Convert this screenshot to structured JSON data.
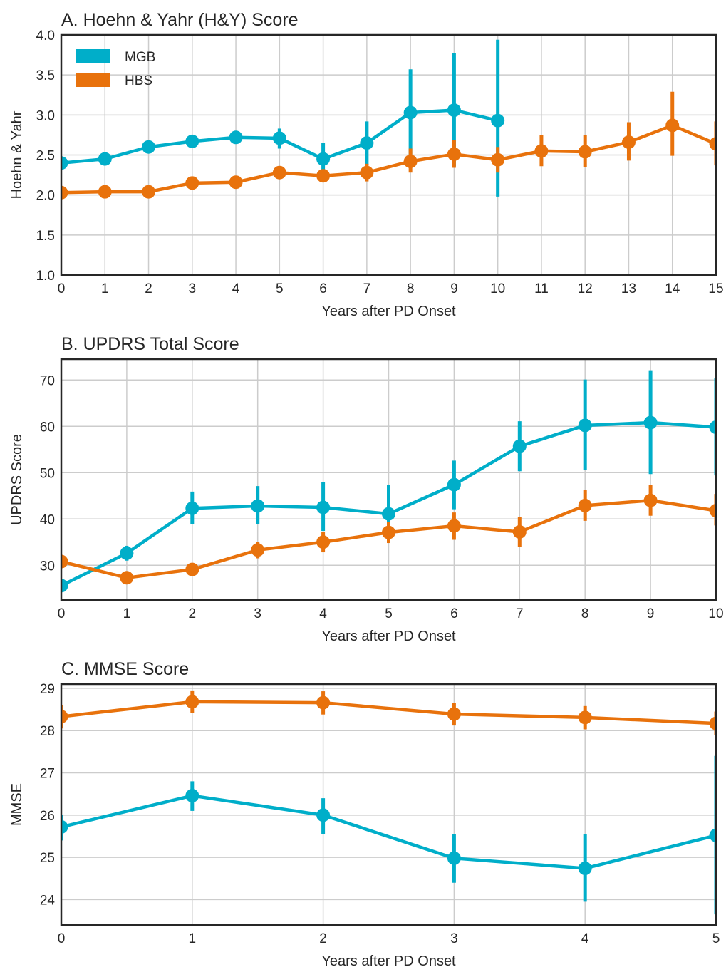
{
  "colors": {
    "MGB": "#00AEC9",
    "HBS": "#E8720C"
  },
  "chart_data": [
    {
      "type": "line",
      "title": "A. Hoehn & Yahr (H&Y) Score",
      "xlabel": "Years after PD Onset",
      "ylabel": "Hoehn & Yahr",
      "xlim": [
        0,
        15
      ],
      "ylim": [
        1.0,
        4.0
      ],
      "xticks": [
        0,
        1,
        2,
        3,
        4,
        5,
        6,
        7,
        8,
        9,
        10,
        11,
        12,
        13,
        14,
        15
      ],
      "yticks": [
        1.0,
        1.5,
        2.0,
        2.5,
        3.0,
        3.5,
        4.0
      ],
      "ytick_labels": [
        "1.0",
        "1.5",
        "2.0",
        "2.5",
        "3.0",
        "3.5",
        "4.0"
      ],
      "grid": true,
      "legend": {
        "location": "top-left",
        "entries": [
          "MGB",
          "HBS"
        ]
      },
      "series": [
        {
          "name": "MGB",
          "x": [
            0,
            1,
            2,
            3,
            4,
            5,
            6,
            7,
            8,
            9,
            10
          ],
          "y": [
            2.4,
            2.45,
            2.6,
            2.67,
            2.72,
            2.71,
            2.45,
            2.65,
            3.03,
            3.06,
            2.93
          ],
          "err_low": [
            2.36,
            2.41,
            2.55,
            2.62,
            2.67,
            2.58,
            2.28,
            2.38,
            2.5,
            2.36,
            1.98
          ],
          "err_high": [
            2.44,
            2.5,
            2.65,
            2.72,
            2.77,
            2.83,
            2.65,
            2.92,
            3.57,
            3.77,
            3.94
          ]
        },
        {
          "name": "HBS",
          "x": [
            0,
            1,
            2,
            3,
            4,
            5,
            6,
            7,
            8,
            9,
            10,
            11,
            12,
            13,
            14,
            15
          ],
          "y": [
            2.03,
            2.04,
            2.04,
            2.15,
            2.16,
            2.28,
            2.24,
            2.28,
            2.42,
            2.51,
            2.44,
            2.55,
            2.54,
            2.66,
            2.87,
            2.64
          ],
          "err_low": [
            2.0,
            2.01,
            2.01,
            2.11,
            2.12,
            2.23,
            2.18,
            2.17,
            2.28,
            2.34,
            2.28,
            2.36,
            2.35,
            2.43,
            2.49,
            2.37
          ],
          "err_high": [
            2.06,
            2.07,
            2.07,
            2.19,
            2.2,
            2.33,
            2.3,
            2.39,
            2.58,
            2.69,
            2.6,
            2.75,
            2.75,
            2.91,
            3.29,
            2.92
          ]
        }
      ]
    },
    {
      "type": "line",
      "title": "B. UPDRS Total Score",
      "xlabel": "Years after PD Onset",
      "ylabel": "UPDRS Score",
      "xlim": [
        0,
        10
      ],
      "ylim": [
        22.5,
        74.5
      ],
      "xticks": [
        0,
        1,
        2,
        3,
        4,
        5,
        6,
        7,
        8,
        9,
        10
      ],
      "yticks": [
        30,
        40,
        50,
        60,
        70
      ],
      "ytick_labels": [
        "30",
        "40",
        "50",
        "60",
        "70"
      ],
      "grid": true,
      "series": [
        {
          "name": "MGB",
          "x": [
            0,
            1,
            2,
            3,
            4,
            5,
            6,
            7,
            8,
            9,
            10
          ],
          "y": [
            25.6,
            32.6,
            42.3,
            42.8,
            42.5,
            41.1,
            47.4,
            55.7,
            60.2,
            60.8,
            59.8
          ],
          "err_low": [
            24.5,
            31.0,
            38.9,
            38.9,
            37.4,
            35.6,
            42.1,
            50.3,
            50.6,
            49.7,
            49.4
          ],
          "err_high": [
            26.7,
            34.2,
            45.9,
            47.1,
            47.9,
            47.3,
            52.6,
            61.1,
            70.1,
            72.1,
            70.4
          ]
        },
        {
          "name": "HBS",
          "x": [
            0,
            1,
            2,
            3,
            4,
            5,
            6,
            7,
            8,
            9,
            10
          ],
          "y": [
            30.8,
            27.3,
            29.1,
            33.3,
            35.0,
            37.1,
            38.5,
            37.2,
            42.9,
            44.0,
            41.8
          ],
          "err_low": [
            29.6,
            26.1,
            27.9,
            31.5,
            32.8,
            34.8,
            35.5,
            34.0,
            39.6,
            40.7,
            38.6
          ],
          "err_high": [
            32.0,
            28.5,
            30.3,
            35.1,
            37.2,
            39.4,
            41.4,
            40.4,
            46.2,
            47.3,
            45.4
          ]
        }
      ]
    },
    {
      "type": "line",
      "title": "C. MMSE Score",
      "xlabel": "Years after PD Onset",
      "ylabel": "MMSE",
      "xlim": [
        0,
        5
      ],
      "ylim": [
        23.4,
        29.1
      ],
      "xticks": [
        0,
        1,
        2,
        3,
        4,
        5
      ],
      "yticks": [
        24,
        25,
        26,
        27,
        28,
        29
      ],
      "ytick_labels": [
        "24",
        "25",
        "26",
        "27",
        "28",
        "29"
      ],
      "grid": true,
      "series": [
        {
          "name": "MGB",
          "x": [
            0,
            1,
            2,
            3,
            4,
            5
          ],
          "y": [
            25.72,
            26.46,
            26.0,
            24.98,
            24.74,
            25.52
          ],
          "err_low": [
            25.4,
            26.1,
            25.55,
            24.4,
            23.95,
            23.65
          ],
          "err_high": [
            26.0,
            26.8,
            26.4,
            25.55,
            25.55,
            27.4
          ]
        },
        {
          "name": "HBS",
          "x": [
            0,
            1,
            2,
            3,
            4,
            5
          ],
          "y": [
            28.33,
            28.68,
            28.66,
            28.39,
            28.31,
            28.17
          ],
          "err_low": [
            28.05,
            28.42,
            28.38,
            28.12,
            28.03,
            27.9
          ],
          "err_high": [
            28.6,
            28.95,
            28.93,
            28.65,
            28.58,
            28.45
          ]
        }
      ]
    }
  ]
}
